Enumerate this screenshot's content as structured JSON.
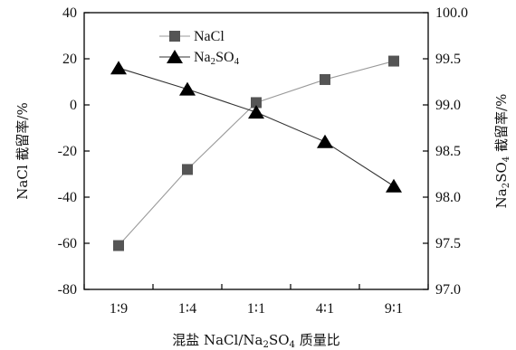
{
  "chart_data": {
    "type": "line",
    "categories": [
      "1∶9",
      "1∶4",
      "1∶1",
      "4∶1",
      "9∶1"
    ],
    "xlabel_parts": [
      "混盐 NaCl/Na",
      "2",
      "SO",
      "4",
      " 质量比"
    ],
    "ylabel_left_parts": [
      "NaCl 截留率/%"
    ],
    "ylabel_right_parts": [
      "Na",
      "2",
      "SO",
      "4",
      " 截留率/%"
    ],
    "ylim_left": [
      -80,
      40
    ],
    "ylim_right": [
      97.0,
      100.0
    ],
    "yticks_left": [
      -80,
      -60,
      -40,
      -20,
      0,
      20,
      40
    ],
    "yticks_right": [
      "97.0",
      "97.5",
      "98.0",
      "98.5",
      "99.0",
      "99.5",
      "100.0"
    ],
    "legend_position": "top-center",
    "grid": false,
    "series": [
      {
        "name_parts": [
          "NaCl"
        ],
        "axis": "left",
        "marker": "square",
        "color": "#555555",
        "line_color": "#9a9a9a",
        "values": [
          -61,
          -28,
          1,
          11,
          19
        ]
      },
      {
        "name_parts": [
          "Na",
          "2",
          "SO",
          "4"
        ],
        "axis": "right",
        "marker": "triangle",
        "color": "#000000",
        "line_color": "#333333",
        "values": [
          99.4,
          99.17,
          98.92,
          98.6,
          98.12
        ]
      }
    ]
  }
}
